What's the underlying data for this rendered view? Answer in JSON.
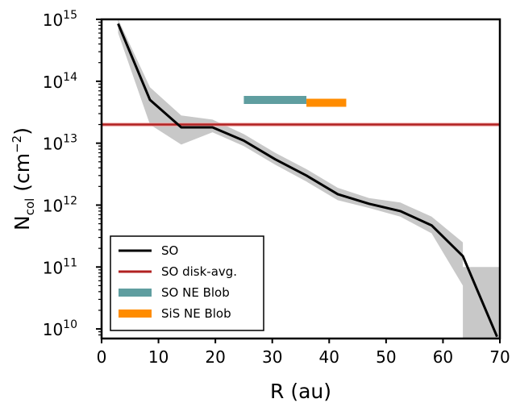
{
  "chart_data": {
    "type": "line",
    "xlabel": "R (au)",
    "ylabel": "N",
    "ylabel_sub": "col",
    "ylabel_units": " (cm",
    "ylabel_units_exp": "−2",
    "ylabel_close": ")",
    "xlim": [
      0,
      70
    ],
    "ylim": [
      7000000000.0,
      1000000000000000.0
    ],
    "yscale": "log",
    "x_ticks": [
      0,
      10,
      20,
      30,
      40,
      50,
      60,
      70
    ],
    "x_tick_labels": [
      "0",
      "10",
      "20",
      "30",
      "40",
      "50",
      "60",
      "70"
    ],
    "y_ticks": [
      10000000000.0,
      100000000000.0,
      1000000000000.0,
      10000000000000.0,
      100000000000000.0,
      1000000000000000.0
    ],
    "y_tick_base": "10",
    "y_tick_exponents": [
      "10",
      "11",
      "12",
      "13",
      "14",
      "15"
    ],
    "grid": false,
    "legend_location": "lower-left",
    "colors": {
      "so": "#000000",
      "so_band": "#c8c8c8",
      "disk_avg": "#b22222",
      "disk_avg_band": "#f0a0a0",
      "so_blob": "#5f9ea0",
      "sis_blob": "#ff8c00"
    },
    "series": [
      {
        "name": "SO",
        "kind": "line",
        "x": [
          2.9,
          8.5,
          14,
          19.5,
          25,
          30.5,
          36,
          41.5,
          47,
          52.5,
          58,
          63.5,
          69.5
        ],
        "y": [
          850000000000000.0,
          50000000000000.0,
          18000000000000.0,
          18000000000000.0,
          11000000000000.0,
          5500000000000.0,
          3000000000000.0,
          1500000000000.0,
          1050000000000.0,
          800000000000.0,
          470000000000.0,
          150000000000.0,
          7500000000.0
        ]
      },
      {
        "name": "SO uncertainty band",
        "kind": "band",
        "x": [
          2.9,
          8.5,
          14,
          19.5,
          25,
          30.5,
          36,
          41.5,
          47,
          52.5,
          58,
          63.5,
          63.5,
          70
        ],
        "y_low": [
          600000000000000.0,
          20000000000000.0,
          9500000000000.0,
          15000000000000.0,
          9000000000000.0,
          4500000000000.0,
          2400000000000.0,
          1200000000000.0,
          900000000000.0,
          650000000000.0,
          350000000000.0,
          50000000000.0,
          7000000000.0,
          7000000000.0
        ],
        "y_high": [
          1000000000000000.0,
          80000000000000.0,
          28000000000000.0,
          24000000000000.0,
          14000000000000.0,
          7000000000000.0,
          3800000000000.0,
          1900000000000.0,
          1300000000000.0,
          1100000000000.0,
          650000000000.0,
          250000000000.0,
          100000000000.0,
          100000000000.0
        ]
      },
      {
        "name": "SO disk-avg.",
        "kind": "hline",
        "y": 20000000000000.0,
        "y_low": 18500000000000.0,
        "y_high": 21500000000000.0
      },
      {
        "name": "SO NE Blob",
        "kind": "segment",
        "x": [
          25,
          36
        ],
        "y": 50000000000000.0
      },
      {
        "name": "SiS NE Blob",
        "kind": "segment",
        "x": [
          36,
          43
        ],
        "y": 45000000000000.0
      }
    ],
    "legend": [
      "SO",
      "SO disk-avg.",
      "SO NE Blob",
      "SiS NE Blob"
    ]
  }
}
